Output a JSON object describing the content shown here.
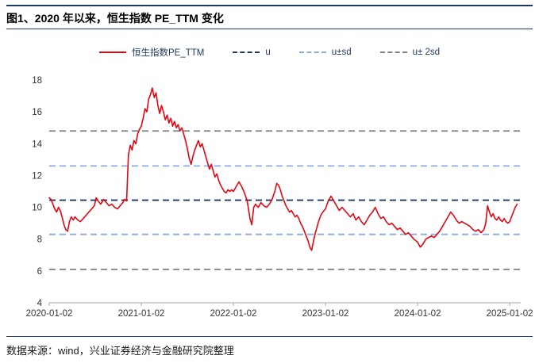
{
  "title": "图1、2020 年以来，恒生指数 PE_TTM 变化",
  "footer": "数据来源：wind，兴业证券经济与金融研究院整理",
  "legend": [
    {
      "label": "恒生指数PE_TTM",
      "color": "#e30613",
      "line_style": "solid"
    },
    {
      "label": "u",
      "color": "#1f3864",
      "line_style": "dashed"
    },
    {
      "label": "u±sd",
      "color": "#8faadc",
      "line_style": "dashed"
    },
    {
      "label": "u± 2sd",
      "color": "#808080",
      "line_style": "dashed"
    }
  ],
  "colors": {
    "series_red": "#e30613",
    "mean_navy": "#1f3864",
    "sd_blue": "#8faadc",
    "sd2_gray": "#808080",
    "rule_navy": "#1f3864",
    "axis_gray": "#a6a6a6",
    "tick_text": "#333333"
  },
  "chart_data": {
    "type": "line",
    "title": "图1、2020 年以来，恒生指数 PE_TTM 变化",
    "xlabel": "",
    "ylabel": "",
    "ylim": [
      4,
      18
    ],
    "ytick_step": 2,
    "x_range_years": [
      2020.0,
      2025.12
    ],
    "x_tick_years": [
      2020,
      2021,
      2022,
      2023,
      2024,
      2025
    ],
    "x_tick_labels": [
      "2020-01-02",
      "2021-01-02",
      "2022-01-02",
      "2023-01-02",
      "2024-01-02",
      "2025-01-02"
    ],
    "grid": false,
    "legend_position": "top",
    "reference_lines": [
      {
        "name": "u",
        "value": 10.45,
        "color": "#1f3864"
      },
      {
        "name": "u-plus-sd",
        "value": 12.6,
        "color": "#8faadc"
      },
      {
        "name": "u-minus-sd",
        "value": 8.3,
        "color": "#8faadc"
      },
      {
        "name": "u-plus-2sd",
        "value": 14.8,
        "color": "#808080"
      },
      {
        "name": "u-minus-2sd",
        "value": 6.1,
        "color": "#808080"
      }
    ],
    "series": [
      {
        "name": "恒生指数PE_TTM",
        "color": "#e30613",
        "points": [
          [
            2020.0,
            10.6
          ],
          [
            2020.02,
            10.5
          ],
          [
            2020.04,
            10.2
          ],
          [
            2020.06,
            9.9
          ],
          [
            2020.08,
            9.7
          ],
          [
            2020.1,
            10.0
          ],
          [
            2020.12,
            9.8
          ],
          [
            2020.14,
            9.4
          ],
          [
            2020.16,
            8.9
          ],
          [
            2020.18,
            8.6
          ],
          [
            2020.2,
            8.5
          ],
          [
            2020.22,
            9.1
          ],
          [
            2020.24,
            9.4
          ],
          [
            2020.26,
            9.2
          ],
          [
            2020.28,
            9.4
          ],
          [
            2020.31,
            9.2
          ],
          [
            2020.34,
            9.1
          ],
          [
            2020.37,
            9.3
          ],
          [
            2020.4,
            9.5
          ],
          [
            2020.43,
            9.7
          ],
          [
            2020.46,
            9.9
          ],
          [
            2020.49,
            10.1
          ],
          [
            2020.51,
            10.6
          ],
          [
            2020.53,
            10.4
          ],
          [
            2020.56,
            10.2
          ],
          [
            2020.59,
            10.5
          ],
          [
            2020.62,
            10.3
          ],
          [
            2020.65,
            10.1
          ],
          [
            2020.68,
            10.2
          ],
          [
            2020.71,
            10.0
          ],
          [
            2020.74,
            9.9
          ],
          [
            2020.77,
            10.1
          ],
          [
            2020.8,
            10.3
          ],
          [
            2020.82,
            10.5
          ],
          [
            2020.84,
            10.4
          ],
          [
            2020.86,
            13.3
          ],
          [
            2020.88,
            13.9
          ],
          [
            2020.9,
            13.6
          ],
          [
            2020.92,
            14.2
          ],
          [
            2020.94,
            14.0
          ],
          [
            2020.96,
            14.6
          ],
          [
            2020.98,
            14.9
          ],
          [
            2021.0,
            15.1
          ],
          [
            2021.02,
            15.6
          ],
          [
            2021.04,
            16.2
          ],
          [
            2021.06,
            16.0
          ],
          [
            2021.08,
            16.8
          ],
          [
            2021.1,
            17.1
          ],
          [
            2021.12,
            17.5
          ],
          [
            2021.14,
            16.9
          ],
          [
            2021.16,
            17.2
          ],
          [
            2021.18,
            16.4
          ],
          [
            2021.2,
            15.9
          ],
          [
            2021.22,
            16.4
          ],
          [
            2021.24,
            16.0
          ],
          [
            2021.26,
            15.5
          ],
          [
            2021.28,
            15.8
          ],
          [
            2021.3,
            15.3
          ],
          [
            2021.32,
            15.6
          ],
          [
            2021.34,
            15.1
          ],
          [
            2021.36,
            15.4
          ],
          [
            2021.38,
            15.0
          ],
          [
            2021.4,
            15.2
          ],
          [
            2021.42,
            14.8
          ],
          [
            2021.44,
            15.0
          ],
          [
            2021.46,
            14.6
          ],
          [
            2021.48,
            14.2
          ],
          [
            2021.5,
            13.7
          ],
          [
            2021.52,
            13.1
          ],
          [
            2021.54,
            12.7
          ],
          [
            2021.56,
            13.2
          ],
          [
            2021.58,
            13.6
          ],
          [
            2021.6,
            13.9
          ],
          [
            2021.62,
            14.2
          ],
          [
            2021.64,
            13.8
          ],
          [
            2021.66,
            14.0
          ],
          [
            2021.68,
            13.6
          ],
          [
            2021.7,
            13.2
          ],
          [
            2021.72,
            12.8
          ],
          [
            2021.74,
            12.4
          ],
          [
            2021.76,
            12.7
          ],
          [
            2021.78,
            12.3
          ],
          [
            2021.8,
            11.9
          ],
          [
            2021.82,
            12.1
          ],
          [
            2021.84,
            11.7
          ],
          [
            2021.86,
            11.4
          ],
          [
            2021.88,
            11.2
          ],
          [
            2021.9,
            11.0
          ],
          [
            2021.92,
            10.9
          ],
          [
            2021.94,
            11.1
          ],
          [
            2021.96,
            11.0
          ],
          [
            2021.98,
            11.1
          ],
          [
            2022.0,
            11.0
          ],
          [
            2022.03,
            11.3
          ],
          [
            2022.06,
            11.6
          ],
          [
            2022.09,
            11.3
          ],
          [
            2022.12,
            10.9
          ],
          [
            2022.15,
            10.4
          ],
          [
            2022.18,
            9.3
          ],
          [
            2022.2,
            8.9
          ],
          [
            2022.22,
            10.0
          ],
          [
            2022.24,
            10.2
          ],
          [
            2022.27,
            10.0
          ],
          [
            2022.3,
            10.3
          ],
          [
            2022.33,
            10.1
          ],
          [
            2022.36,
            10.0
          ],
          [
            2022.39,
            10.2
          ],
          [
            2022.42,
            10.5
          ],
          [
            2022.45,
            11.0
          ],
          [
            2022.47,
            11.5
          ],
          [
            2022.49,
            11.4
          ],
          [
            2022.51,
            11.1
          ],
          [
            2022.53,
            10.7
          ],
          [
            2022.55,
            10.4
          ],
          [
            2022.57,
            10.1
          ],
          [
            2022.59,
            9.9
          ],
          [
            2022.61,
            9.7
          ],
          [
            2022.63,
            9.8
          ],
          [
            2022.65,
            9.6
          ],
          [
            2022.67,
            9.4
          ],
          [
            2022.69,
            9.5
          ],
          [
            2022.71,
            9.3
          ],
          [
            2022.73,
            9.0
          ],
          [
            2022.75,
            8.8
          ],
          [
            2022.77,
            8.5
          ],
          [
            2022.79,
            8.2
          ],
          [
            2022.81,
            7.9
          ],
          [
            2022.83,
            7.5
          ],
          [
            2022.85,
            7.3
          ],
          [
            2022.87,
            7.9
          ],
          [
            2022.89,
            8.4
          ],
          [
            2022.91,
            8.8
          ],
          [
            2022.93,
            9.2
          ],
          [
            2022.95,
            9.5
          ],
          [
            2022.97,
            9.7
          ],
          [
            2023.0,
            9.9
          ],
          [
            2023.03,
            10.4
          ],
          [
            2023.06,
            10.7
          ],
          [
            2023.09,
            10.4
          ],
          [
            2023.12,
            10.1
          ],
          [
            2023.15,
            9.8
          ],
          [
            2023.18,
            10.0
          ],
          [
            2023.21,
            9.8
          ],
          [
            2023.24,
            9.6
          ],
          [
            2023.27,
            9.4
          ],
          [
            2023.3,
            9.6
          ],
          [
            2023.33,
            9.2
          ],
          [
            2023.36,
            9.4
          ],
          [
            2023.39,
            9.1
          ],
          [
            2023.42,
            8.9
          ],
          [
            2023.45,
            9.2
          ],
          [
            2023.48,
            9.5
          ],
          [
            2023.51,
            9.7
          ],
          [
            2023.54,
            10.0
          ],
          [
            2023.57,
            9.6
          ],
          [
            2023.6,
            9.3
          ],
          [
            2023.63,
            9.4
          ],
          [
            2023.66,
            9.1
          ],
          [
            2023.69,
            8.9
          ],
          [
            2023.72,
            9.0
          ],
          [
            2023.75,
            8.8
          ],
          [
            2023.78,
            8.6
          ],
          [
            2023.81,
            8.7
          ],
          [
            2023.84,
            8.5
          ],
          [
            2023.87,
            8.3
          ],
          [
            2023.9,
            8.4
          ],
          [
            2023.93,
            8.2
          ],
          [
            2023.96,
            8.0
          ],
          [
            2024.0,
            7.8
          ],
          [
            2024.03,
            7.5
          ],
          [
            2024.06,
            7.7
          ],
          [
            2024.09,
            8.0
          ],
          [
            2024.12,
            8.1
          ],
          [
            2024.15,
            8.2
          ],
          [
            2024.18,
            8.1
          ],
          [
            2024.21,
            8.3
          ],
          [
            2024.24,
            8.5
          ],
          [
            2024.27,
            8.8
          ],
          [
            2024.3,
            9.1
          ],
          [
            2024.33,
            9.4
          ],
          [
            2024.36,
            9.7
          ],
          [
            2024.39,
            9.5
          ],
          [
            2024.42,
            9.2
          ],
          [
            2024.45,
            9.0
          ],
          [
            2024.48,
            9.1
          ],
          [
            2024.51,
            9.0
          ],
          [
            2024.54,
            8.9
          ],
          [
            2024.57,
            8.8
          ],
          [
            2024.6,
            8.6
          ],
          [
            2024.63,
            8.5
          ],
          [
            2024.66,
            8.6
          ],
          [
            2024.69,
            8.4
          ],
          [
            2024.72,
            8.6
          ],
          [
            2024.74,
            9.0
          ],
          [
            2024.76,
            10.1
          ],
          [
            2024.78,
            9.7
          ],
          [
            2024.8,
            9.4
          ],
          [
            2024.82,
            9.6
          ],
          [
            2024.84,
            9.3
          ],
          [
            2024.86,
            9.2
          ],
          [
            2024.88,
            9.4
          ],
          [
            2024.9,
            9.2
          ],
          [
            2024.92,
            9.1
          ],
          [
            2024.94,
            9.3
          ],
          [
            2024.96,
            9.1
          ],
          [
            2024.98,
            9.0
          ],
          [
            2025.0,
            9.1
          ],
          [
            2025.02,
            9.4
          ],
          [
            2025.04,
            9.7
          ],
          [
            2025.06,
            10.0
          ],
          [
            2025.08,
            10.2
          ]
        ]
      }
    ]
  }
}
